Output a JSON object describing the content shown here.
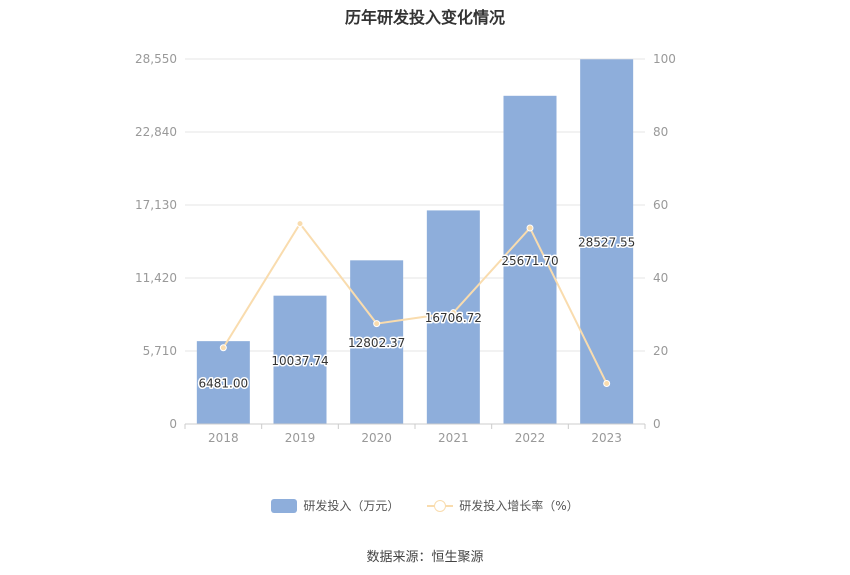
{
  "chart_data": {
    "type": "bar",
    "title": "历年研发投入变化情况",
    "categories": [
      "2018",
      "2019",
      "2020",
      "2021",
      "2022",
      "2023"
    ],
    "series": [
      {
        "name": "研发投入（万元）",
        "type": "bar",
        "axis": "left",
        "color": "#8eaedb",
        "values": [
          6481.0,
          10037.74,
          12802.37,
          16706.72,
          25671.7,
          28527.55
        ],
        "labels": [
          "6481.00",
          "10037.74",
          "12802.37",
          "16706.72",
          "25671.70",
          "28527.55"
        ]
      },
      {
        "name": "研发投入增长率（%）",
        "type": "line",
        "axis": "right",
        "color": "#f9dcae",
        "values": [
          20.9,
          54.9,
          27.5,
          30.5,
          53.7,
          11.1
        ]
      }
    ],
    "y_left": {
      "ticks": [
        "0",
        "5,710",
        "11,420",
        "17,130",
        "22,840",
        "28,550"
      ],
      "range": [
        0,
        28550
      ]
    },
    "y_right": {
      "ticks": [
        "0",
        "20",
        "40",
        "60",
        "80",
        "100"
      ],
      "range": [
        0,
        100
      ]
    },
    "grid": true,
    "legend_position": "bottom"
  },
  "source": "数据来源：恒生聚源"
}
